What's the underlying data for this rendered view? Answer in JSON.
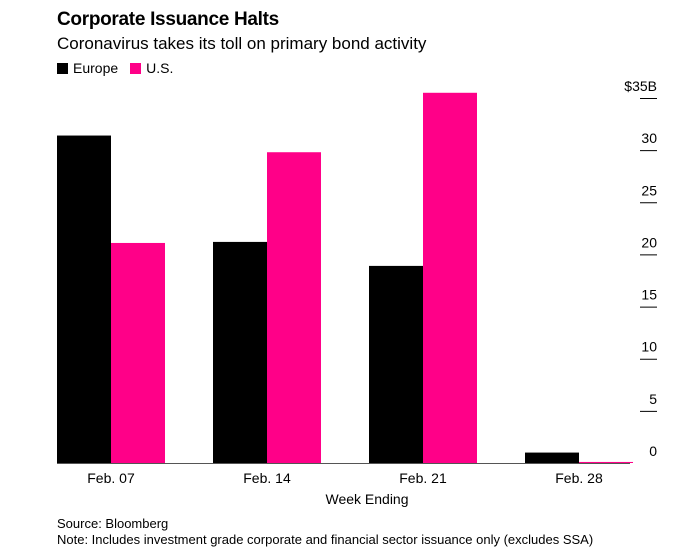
{
  "chart_data": {
    "type": "bar",
    "title": "Corporate Issuance Halts",
    "subtitle": "Coronavirus takes its toll on primary bond activity",
    "xlabel": "Week Ending",
    "ylabel": "",
    "categories": [
      "Feb. 07",
      "Feb. 14",
      "Feb. 21",
      "Feb. 28"
    ],
    "series": [
      {
        "name": "Europe",
        "color": "#000000",
        "values": [
          31.4,
          21.2,
          18.9,
          1.0
        ]
      },
      {
        "name": "U.S.",
        "color": "#ff0088",
        "values": [
          21.1,
          29.8,
          35.5,
          0.1
        ]
      }
    ],
    "ylim": [
      0,
      35
    ],
    "yticks": [
      0,
      5,
      10,
      15,
      20,
      25,
      30,
      35
    ],
    "ytick_labels": [
      "0",
      "5",
      "10",
      "15",
      "20",
      "25",
      "30",
      "$35B"
    ],
    "y_axis_position": "right",
    "grid": false,
    "legend_position": "top-left"
  },
  "footer": {
    "source": "Source: Bloomberg",
    "note": "Note: Includes investment grade corporate and financial sector issuance only (excludes SSA)"
  }
}
